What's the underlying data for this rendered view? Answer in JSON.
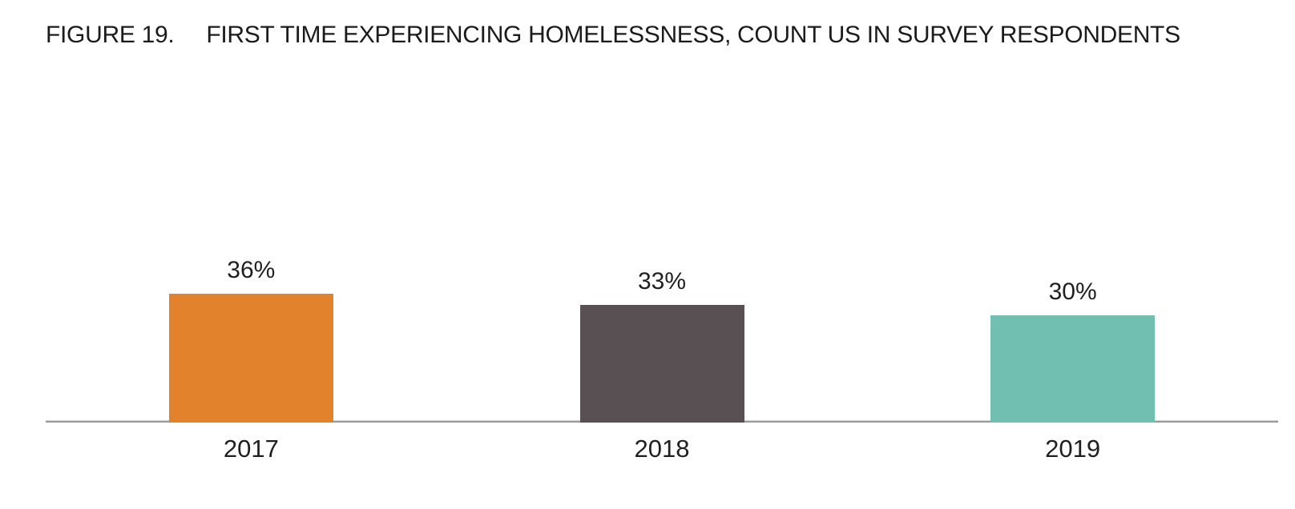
{
  "header": {
    "figure_label": "FIGURE 19.",
    "figure_caption": "FIRST TIME EXPERIENCING HOMELESSNESS, COUNT US IN SURVEY RESPONDENTS"
  },
  "chart_data": {
    "type": "bar",
    "title": "FIGURE 19. FIRST TIME EXPERIENCING HOMELESSNESS, COUNT US IN SURVEY RESPONDENTS",
    "categories": [
      "2017",
      "2018",
      "2019"
    ],
    "values": [
      36,
      33,
      30
    ],
    "data_labels": [
      "36%",
      "33%",
      "30%"
    ],
    "unit": "%",
    "bar_colors": [
      "#E2822D",
      "#585053",
      "#70BFB1"
    ],
    "axis_line_color": "#9a9a9a",
    "text_color": "#1f1f1f",
    "ylim": [
      0,
      40
    ],
    "grid": false,
    "legend": "none",
    "xlabel": "",
    "ylabel": ""
  }
}
